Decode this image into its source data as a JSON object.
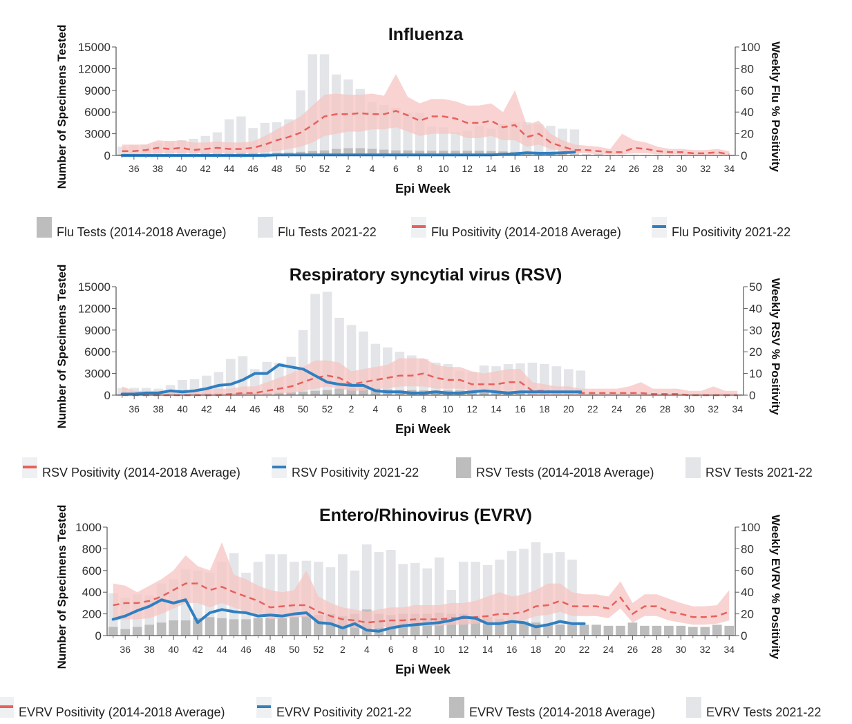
{
  "chart_data": [
    {
      "type": "bar+line",
      "title": "Influenza",
      "xlabel": "Epi Week",
      "ylabel_left": "Number of Specimens Tested",
      "ylabel_right": "Weekly Flu % Positivity",
      "ylim_left": [
        0,
        15000
      ],
      "ylim_right": [
        0,
        100
      ],
      "yticks_left": [
        "0",
        "3000",
        "6000",
        "9000",
        "12000",
        "15000"
      ],
      "yticks_right": [
        "0",
        "20",
        "40",
        "60",
        "80",
        "100"
      ],
      "weeks": [
        35,
        36,
        37,
        38,
        39,
        40,
        41,
        42,
        43,
        44,
        45,
        46,
        47,
        48,
        49,
        50,
        51,
        52,
        1,
        2,
        3,
        4,
        5,
        6,
        7,
        8,
        9,
        10,
        11,
        12,
        13,
        14,
        15,
        16,
        17,
        18,
        19,
        20,
        21,
        22,
        23,
        24,
        25,
        26,
        27,
        28,
        29,
        30,
        31,
        32,
        33,
        34
      ],
      "xtick_labels": [
        "36",
        "38",
        "40",
        "42",
        "44",
        "46",
        "48",
        "50",
        "52",
        "2",
        "4",
        "6",
        "8",
        "10",
        "12",
        "14",
        "16",
        "18",
        "20",
        "22",
        "24",
        "26",
        "28",
        "30",
        "32",
        "34"
      ],
      "legend": [
        "Flu Tests (2014-2018 Average)",
        "Flu Tests 2021-22",
        "Flu Positivity (2014-2018 Average)",
        "Flu Positivity 2021-22"
      ],
      "colors": {
        "tests_avg": "#bdbdbd",
        "tests_cur": "#e3e5e8",
        "pos_avg": "#e8605a",
        "band": "#f6c4c3",
        "pos_cur": "#2f7fc1"
      },
      "tests_current": [
        1200,
        1400,
        1500,
        1800,
        2000,
        2100,
        2300,
        2700,
        3200,
        5000,
        5400,
        3800,
        4500,
        4600,
        5000,
        9000,
        14000,
        14000,
        11200,
        10500,
        9200,
        7400,
        7000,
        6600,
        5900,
        5900,
        4000,
        3900,
        3200,
        3400,
        4100,
        3700,
        4300,
        4600,
        4600,
        4300,
        4100,
        3700,
        3600,
        null,
        null,
        null,
        null,
        null,
        null,
        null,
        null,
        null,
        null,
        null,
        null,
        null
      ],
      "tests_avg": [
        150,
        150,
        150,
        200,
        200,
        200,
        200,
        250,
        250,
        250,
        300,
        300,
        300,
        350,
        400,
        500,
        600,
        700,
        900,
        1000,
        1000,
        900,
        800,
        700,
        700,
        650,
        650,
        650,
        650,
        650,
        650,
        600,
        550,
        500,
        400,
        300,
        250,
        200,
        150,
        150,
        150,
        100,
        100,
        100,
        100,
        100,
        100,
        100,
        100,
        100,
        100,
        100
      ],
      "positivity_avg": [
        4,
        4,
        5,
        7,
        6,
        7,
        5,
        6,
        7,
        6,
        6,
        7,
        10,
        14,
        17,
        21,
        28,
        36,
        38,
        38,
        39,
        38,
        38,
        41,
        37,
        32,
        36,
        36,
        34,
        30,
        30,
        32,
        26,
        28,
        17,
        20,
        12,
        8,
        5,
        5,
        4,
        3,
        3,
        7,
        6,
        4,
        3,
        3,
        2,
        2,
        3,
        1
      ],
      "band_low": [
        1,
        1,
        1,
        2,
        2,
        2,
        2,
        2,
        2,
        2,
        2,
        2,
        3,
        4,
        6,
        8,
        12,
        18,
        20,
        22,
        22,
        24,
        24,
        26,
        22,
        18,
        20,
        20,
        20,
        16,
        16,
        18,
        14,
        14,
        8,
        10,
        6,
        4,
        2,
        2,
        1,
        1,
        1,
        2,
        2,
        1,
        1,
        1,
        0,
        0,
        1,
        0
      ],
      "band_high": [
        10,
        10,
        10,
        14,
        13,
        14,
        12,
        12,
        13,
        12,
        12,
        13,
        18,
        24,
        30,
        36,
        46,
        56,
        57,
        56,
        56,
        57,
        55,
        75,
        54,
        48,
        52,
        52,
        50,
        46,
        46,
        48,
        40,
        60,
        28,
        32,
        20,
        14,
        10,
        9,
        8,
        6,
        20,
        14,
        12,
        8,
        6,
        6,
        5,
        5,
        6,
        4
      ],
      "positivity_current": [
        0,
        0,
        0,
        0,
        0,
        0,
        0,
        0,
        0,
        0,
        0,
        0,
        0,
        0.5,
        0.5,
        0.5,
        0.5,
        0.5,
        0.5,
        0.5,
        0.5,
        0.5,
        0.5,
        0.5,
        0.5,
        0.5,
        0.5,
        0.5,
        0.5,
        0.5,
        0.5,
        0.5,
        1,
        1.5,
        2.5,
        2,
        2,
        2.5,
        3,
        null,
        null,
        null,
        null,
        null,
        null,
        null,
        null,
        null,
        null,
        null,
        null,
        null
      ]
    },
    {
      "type": "bar+line",
      "title": "Respiratory syncytial virus (RSV)",
      "xlabel": "Epi Week",
      "ylabel_left": "Number of Specimens Tested",
      "ylabel_right": "Weekly RSV % Positivity",
      "ylim_left": [
        0,
        15000
      ],
      "ylim_right": [
        0,
        50
      ],
      "yticks_left": [
        "0",
        "3000",
        "6000",
        "9000",
        "12000",
        "15000"
      ],
      "yticks_right": [
        "0",
        "10",
        "20",
        "30",
        "40",
        "50"
      ],
      "weeks": [
        35,
        36,
        37,
        38,
        39,
        40,
        41,
        42,
        43,
        44,
        45,
        46,
        47,
        48,
        49,
        50,
        51,
        52,
        1,
        2,
        3,
        4,
        5,
        6,
        7,
        8,
        9,
        10,
        11,
        12,
        13,
        14,
        15,
        16,
        17,
        18,
        19,
        20,
        21,
        22,
        23,
        24,
        25,
        26,
        27,
        28,
        29,
        30,
        31,
        32,
        33,
        34
      ],
      "xtick_labels": [
        "36",
        "38",
        "40",
        "42",
        "44",
        "46",
        "48",
        "50",
        "52",
        "2",
        "4",
        "6",
        "8",
        "10",
        "12",
        "14",
        "16",
        "18",
        "20",
        "22",
        "24",
        "26",
        "28",
        "30",
        "32",
        "34"
      ],
      "legend": [
        "RSV Positivity (2014-2018 Average)",
        "RSV Positivity 2021-22",
        "RSV Tests (2014-2018 Average)",
        "RSV Tests 2021-22"
      ],
      "colors": {
        "tests_avg": "#bdbdbd",
        "tests_cur": "#e3e5e8",
        "pos_avg": "#e8605a",
        "band": "#f6c4c3",
        "pos_cur": "#2f7fc1"
      },
      "tests_current": [
        1000,
        1000,
        1000,
        900,
        1400,
        2100,
        2200,
        2700,
        3200,
        5000,
        5400,
        3600,
        4600,
        4500,
        5300,
        9000,
        14000,
        14300,
        10700,
        9700,
        8800,
        7100,
        6600,
        6000,
        5500,
        5000,
        4500,
        4300,
        3400,
        3200,
        4100,
        4000,
        4300,
        4400,
        4500,
        4300,
        4000,
        3600,
        3400,
        null,
        null,
        null,
        null,
        null,
        null,
        null,
        null,
        null,
        null,
        null,
        null,
        null
      ],
      "tests_avg": [
        150,
        150,
        150,
        200,
        200,
        200,
        200,
        250,
        250,
        250,
        300,
        300,
        300,
        350,
        400,
        500,
        600,
        700,
        900,
        1000,
        1000,
        900,
        800,
        700,
        700,
        650,
        650,
        650,
        650,
        650,
        650,
        600,
        550,
        500,
        400,
        300,
        250,
        200,
        150,
        150,
        150,
        100,
        100,
        100,
        100,
        100,
        100,
        100,
        100,
        100,
        100,
        100
      ],
      "positivity_avg": [
        0,
        0,
        0,
        0,
        0,
        0,
        0,
        0,
        0,
        0.5,
        1,
        1,
        2,
        3,
        4,
        6,
        8,
        9,
        8,
        5,
        6,
        7,
        8,
        9,
        9,
        10,
        8,
        7,
        7,
        5,
        5,
        5,
        6,
        6,
        2,
        2,
        1.5,
        1.5,
        1,
        1,
        1,
        1,
        1,
        1,
        0.5,
        0.5,
        0.5,
        0,
        0,
        0,
        0,
        0
      ],
      "band_low": [
        0,
        0,
        0,
        0,
        0,
        0,
        0,
        0,
        0,
        0,
        0,
        0,
        0,
        1,
        1,
        2,
        3,
        4,
        3,
        2,
        2,
        3,
        3,
        4,
        4,
        4,
        3,
        3,
        3,
        2,
        2,
        2,
        2,
        2,
        0,
        0,
        0,
        0,
        0,
        0,
        0,
        0,
        0,
        0,
        0,
        0,
        0,
        0,
        0,
        0,
        0,
        0
      ],
      "band_high": [
        4,
        2,
        2,
        2,
        2,
        2,
        2,
        3,
        3,
        3,
        4,
        4,
        6,
        8,
        10,
        13,
        16,
        16,
        15,
        11,
        12,
        13,
        14,
        17,
        17,
        17,
        14,
        13,
        13,
        11,
        10,
        11,
        12,
        12,
        6,
        5,
        4,
        4,
        3,
        3,
        3,
        3,
        4,
        6,
        3,
        3,
        3,
        2,
        2,
        4,
        2,
        2
      ],
      "positivity_current": [
        0.5,
        0.5,
        1,
        1,
        2,
        1.5,
        2,
        3,
        4.5,
        5,
        7,
        10,
        10,
        14,
        13,
        12,
        9,
        6,
        5,
        4.5,
        4.5,
        2,
        1.5,
        1.5,
        1,
        1,
        1.5,
        1,
        1,
        1.5,
        2,
        1.5,
        1,
        1.5,
        1.5,
        1.5,
        1.5,
        1.5,
        1.5,
        null,
        null,
        null,
        null,
        null,
        null,
        null,
        null,
        null,
        null,
        null,
        null,
        null
      ]
    },
    {
      "type": "bar+line",
      "title": "Entero/Rhinovirus (EVRV)",
      "xlabel": "Epi Week",
      "ylabel_left": "Number of Specimens Tested",
      "ylabel_right": "Weekly EVRV % Positivity",
      "ylim_left": [
        0,
        1000
      ],
      "ylim_right": [
        0,
        100
      ],
      "yticks_left": [
        "0",
        "200",
        "400",
        "600",
        "800",
        "1000"
      ],
      "yticks_right": [
        "0",
        "20",
        "40",
        "60",
        "80",
        "100"
      ],
      "weeks": [
        35,
        36,
        37,
        38,
        39,
        40,
        41,
        42,
        43,
        44,
        45,
        46,
        47,
        48,
        49,
        50,
        51,
        52,
        1,
        2,
        3,
        4,
        5,
        6,
        7,
        8,
        9,
        10,
        11,
        12,
        13,
        14,
        15,
        16,
        17,
        18,
        19,
        20,
        21,
        22,
        23,
        24,
        25,
        26,
        27,
        28,
        29,
        30,
        31,
        32,
        33,
        34
      ],
      "xtick_labels": [
        "36",
        "38",
        "40",
        "42",
        "44",
        "46",
        "48",
        "50",
        "52",
        "2",
        "4",
        "6",
        "8",
        "10",
        "12",
        "14",
        "16",
        "18",
        "20",
        "22",
        "24",
        "26",
        "28",
        "30",
        "32",
        "34"
      ],
      "legend": [
        "EVRV Positivity (2014-2018 Average)",
        "EVRV Positivity 2021-22",
        "EVRV Tests (2014-2018 Average)",
        "EVRV Tests 2021-22"
      ],
      "colors": {
        "tests_avg": "#bdbdbd",
        "tests_cur": "#e3e5e8",
        "pos_avg": "#e8605a",
        "band": "#f6c4c3",
        "pos_cur": "#2f7fc1"
      },
      "tests_current": [
        390,
        350,
        380,
        370,
        480,
        520,
        610,
        600,
        580,
        680,
        760,
        580,
        680,
        750,
        750,
        680,
        690,
        680,
        630,
        750,
        600,
        840,
        770,
        790,
        660,
        670,
        620,
        720,
        420,
        680,
        680,
        650,
        700,
        780,
        800,
        860,
        760,
        770,
        700,
        null,
        null,
        null,
        null,
        null,
        null,
        null,
        null,
        null,
        null,
        null,
        null,
        null
      ],
      "tests_avg": [
        80,
        60,
        80,
        100,
        120,
        140,
        140,
        160,
        170,
        160,
        150,
        150,
        160,
        160,
        160,
        170,
        180,
        190,
        200,
        180,
        200,
        240,
        200,
        190,
        200,
        200,
        200,
        210,
        200,
        200,
        180,
        170,
        150,
        140,
        130,
        120,
        110,
        100,
        100,
        100,
        100,
        90,
        90,
        120,
        90,
        90,
        90,
        90,
        80,
        80,
        100,
        90
      ],
      "positivity_avg": [
        28,
        30,
        30,
        32,
        36,
        42,
        48,
        48,
        42,
        45,
        40,
        36,
        32,
        26,
        27,
        28,
        28,
        22,
        18,
        15,
        14,
        12,
        13,
        14,
        14,
        15,
        15,
        15,
        16,
        16,
        17,
        18,
        20,
        20,
        22,
        27,
        28,
        32,
        27,
        27,
        27,
        25,
        35,
        20,
        27,
        27,
        22,
        20,
        17,
        17,
        18,
        22
      ],
      "band_low": [
        14,
        15,
        15,
        16,
        20,
        25,
        30,
        30,
        26,
        30,
        26,
        22,
        20,
        15,
        16,
        17,
        17,
        13,
        10,
        8,
        7,
        6,
        7,
        8,
        8,
        9,
        9,
        9,
        10,
        10,
        11,
        12,
        13,
        13,
        14,
        18,
        19,
        22,
        18,
        18,
        18,
        16,
        25,
        12,
        18,
        18,
        14,
        12,
        10,
        10,
        11,
        14
      ],
      "band_high": [
        48,
        46,
        40,
        46,
        52,
        60,
        74,
        64,
        60,
        86,
        56,
        52,
        46,
        42,
        40,
        42,
        60,
        36,
        30,
        26,
        24,
        22,
        24,
        26,
        26,
        28,
        28,
        28,
        30,
        30,
        32,
        36,
        40,
        36,
        38,
        42,
        48,
        48,
        40,
        38,
        38,
        36,
        50,
        30,
        38,
        38,
        34,
        30,
        27,
        27,
        28,
        42
      ],
      "positivity_current": [
        15,
        18,
        23,
        27,
        33,
        30,
        33,
        12,
        21,
        24,
        22,
        21,
        18,
        19,
        18,
        20,
        21,
        12,
        11,
        7,
        11,
        5,
        4,
        7,
        9,
        10,
        11,
        12,
        14,
        17,
        16,
        11,
        11,
        13,
        12,
        8,
        10,
        13,
        11,
        11,
        null,
        null,
        null,
        null,
        null,
        null,
        null,
        null,
        null,
        null,
        null,
        null
      ]
    }
  ]
}
